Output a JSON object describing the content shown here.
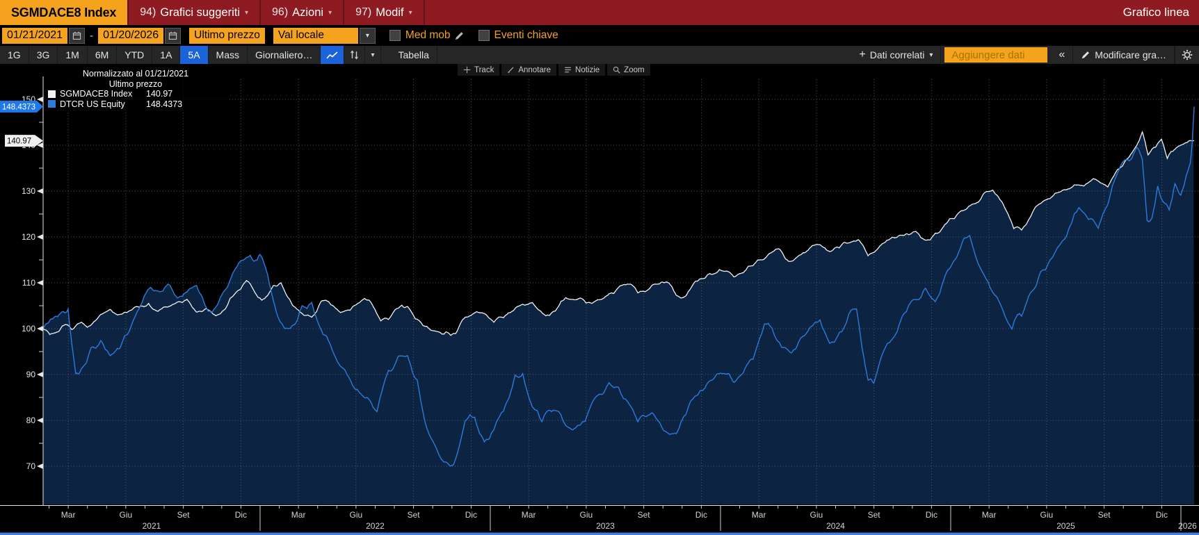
{
  "window": {
    "ticker": "SGMDACE8 Index",
    "menus": [
      {
        "num": "94)",
        "label": "Grafici suggeriti"
      },
      {
        "num": "96)",
        "label": "Azioni"
      },
      {
        "num": "97)",
        "label": "Modif"
      }
    ],
    "right_title": "Grafico linea"
  },
  "icons": {
    "caret": "▾",
    "collapse": "«",
    "plus": "+"
  },
  "controls": {
    "date_from": "01/21/2021",
    "date_sep": "-",
    "date_to": "01/20/2026",
    "price_field": "Ultimo prezzo",
    "currency_field": "Val locale",
    "med_mob_label": "Med mob",
    "eventi_label": "Eventi chiave"
  },
  "toolbar": {
    "ranges": [
      "1G",
      "3G",
      "1M",
      "6M",
      "YTD",
      "1A",
      "5A"
    ],
    "active_range": "5A",
    "mass_label": "Mass",
    "period_label": "Giornaliero…",
    "table_label": "Tabella",
    "dati_correlati": "Dati correlati",
    "aggiungere_dati": "Aggiungere dati",
    "modify_label": "Modificare gra…"
  },
  "chart_tools": [
    "Track",
    "Annotare",
    "Notizie",
    "Zoom"
  ],
  "legend": {
    "line1": "Normalizzato al 01/21/2021",
    "line2": "Ultimo prezzo",
    "series": [
      {
        "name": "SGMDACE8 Index",
        "value": "140.97",
        "color": "#f2f2f2"
      },
      {
        "name": "DTCR US Equity",
        "value": "148.4373",
        "color": "#2e7bdb"
      }
    ]
  },
  "chart_data": {
    "type": "line",
    "title": "Normalizzato al 01/21/2021",
    "subtitle": "Ultimo prezzo",
    "x_start": "01/21/2021",
    "x_end": "01/20/2026",
    "x_unit": "months_since_start",
    "ylim": [
      61.5,
      153
    ],
    "y_ticks": [
      70,
      80,
      90,
      100,
      110,
      120,
      130,
      140,
      150
    ],
    "x_month_labels": [
      "Mar",
      "Giu",
      "Set",
      "Dic"
    ],
    "years": [
      "2021",
      "2022",
      "2023",
      "2024",
      "2025",
      "2026"
    ],
    "grid": true,
    "legend_position": "top-left",
    "fill_color": "#0c2341",
    "series": [
      {
        "name": "SGMDACE8 Index",
        "color": "#f2f2f2",
        "last": 140.97,
        "points": [
          [
            0,
            100
          ],
          [
            0.7,
            99.2
          ],
          [
            1,
            100.6
          ],
          [
            1.5,
            99.8
          ],
          [
            2,
            101.4
          ],
          [
            2.3,
            100.3
          ],
          [
            3,
            103.1
          ],
          [
            3.5,
            104.2
          ],
          [
            4,
            103.1
          ],
          [
            4.5,
            103.9
          ],
          [
            5,
            104.7
          ],
          [
            5.5,
            105.5
          ],
          [
            6,
            103.8
          ],
          [
            6.5,
            104.7
          ],
          [
            7,
            105.8
          ],
          [
            7.5,
            106.4
          ],
          [
            8,
            103.6
          ],
          [
            8.5,
            104.4
          ],
          [
            9,
            102.8
          ],
          [
            9.5,
            104.3
          ],
          [
            10,
            107.6
          ],
          [
            10.6,
            110.5
          ],
          [
            11,
            108.2
          ],
          [
            11.4,
            106.2
          ],
          [
            12,
            109.4
          ],
          [
            12.4,
            110.0
          ],
          [
            13,
            105.1
          ],
          [
            13.6,
            102.9
          ],
          [
            14,
            102.5
          ],
          [
            14.5,
            106.0
          ],
          [
            15,
            105.2
          ],
          [
            15.5,
            103.5
          ],
          [
            16,
            104.0
          ],
          [
            16.5,
            105.7
          ],
          [
            17,
            106.2
          ],
          [
            17.6,
            101.7
          ],
          [
            18,
            102.0
          ],
          [
            18.7,
            105.1
          ],
          [
            19,
            104.8
          ],
          [
            19.8,
            100.7
          ],
          [
            20,
            100.5
          ],
          [
            20.8,
            98.8
          ],
          [
            21,
            99.3
          ],
          [
            21.5,
            98.9
          ],
          [
            22,
            102.5
          ],
          [
            22.6,
            103.7
          ],
          [
            23,
            103.3
          ],
          [
            23.5,
            101.4
          ],
          [
            24,
            102.4
          ],
          [
            24.5,
            103.9
          ],
          [
            25,
            105.3
          ],
          [
            25.5,
            105.7
          ],
          [
            26,
            103.5
          ],
          [
            26.4,
            102.9
          ],
          [
            27,
            106.0
          ],
          [
            27.5,
            106.4
          ],
          [
            28,
            106.7
          ],
          [
            28.6,
            105.5
          ],
          [
            29,
            106.3
          ],
          [
            29.5,
            107.6
          ],
          [
            30,
            109.0
          ],
          [
            30.5,
            109.7
          ],
          [
            31,
            107.8
          ],
          [
            31.5,
            108.4
          ],
          [
            32,
            109.7
          ],
          [
            32.5,
            110.2
          ],
          [
            33,
            107.3
          ],
          [
            33.5,
            107.1
          ],
          [
            34,
            110.3
          ],
          [
            34.5,
            111.0
          ],
          [
            35,
            112.0
          ],
          [
            35.5,
            112.5
          ],
          [
            36,
            111.3
          ],
          [
            36.5,
            112.2
          ],
          [
            37,
            113.7
          ],
          [
            37.5,
            115.0
          ],
          [
            38,
            116.7
          ],
          [
            38.4,
            117.3
          ],
          [
            39,
            114.7
          ],
          [
            39.5,
            116.1
          ],
          [
            40,
            117.7
          ],
          [
            40.5,
            118.3
          ],
          [
            41,
            116.8
          ],
          [
            41.5,
            117.6
          ],
          [
            42,
            118.7
          ],
          [
            42.5,
            119.4
          ],
          [
            43,
            115.9
          ],
          [
            43.5,
            117.4
          ],
          [
            44,
            119.3
          ],
          [
            44.5,
            119.9
          ],
          [
            45,
            120.7
          ],
          [
            45.5,
            121.2
          ],
          [
            46,
            119.3
          ],
          [
            46.5,
            120.8
          ],
          [
            47,
            122.7
          ],
          [
            47.5,
            124.0
          ],
          [
            48,
            125.8
          ],
          [
            48.5,
            127.2
          ],
          [
            49,
            129.3
          ],
          [
            49.5,
            130.2
          ],
          [
            50,
            127.5
          ],
          [
            50.6,
            121.8
          ],
          [
            51,
            121.5
          ],
          [
            51.5,
            124.6
          ],
          [
            52,
            127.3
          ],
          [
            52.5,
            128.4
          ],
          [
            53,
            129.8
          ],
          [
            53.5,
            130.5
          ],
          [
            54,
            131.3
          ],
          [
            54.5,
            131.9
          ],
          [
            55,
            132.2
          ],
          [
            55.5,
            130.9
          ],
          [
            56,
            134.7
          ],
          [
            56.5,
            137.0
          ],
          [
            57,
            139.9
          ],
          [
            57.3,
            142.9
          ],
          [
            57.6,
            137.9
          ],
          [
            58,
            139.6
          ],
          [
            58.3,
            141.3
          ],
          [
            58.6,
            137.1
          ],
          [
            59,
            139.1
          ],
          [
            59.5,
            140.4
          ],
          [
            60,
            140.97
          ]
        ]
      },
      {
        "name": "DTCR US Equity",
        "color": "#2e7bdb",
        "last": 148.4373,
        "points": [
          [
            0,
            100
          ],
          [
            0.5,
            102.1
          ],
          [
            1,
            103.7
          ],
          [
            1.3,
            104.3
          ],
          [
            1.7,
            90.2
          ],
          [
            2,
            91.3
          ],
          [
            2.5,
            95.9
          ],
          [
            3,
            97.4
          ],
          [
            3.5,
            94.1
          ],
          [
            4,
            95.7
          ],
          [
            4.5,
            99.5
          ],
          [
            5,
            104.3
          ],
          [
            5.6,
            109.0
          ],
          [
            6,
            108.2
          ],
          [
            6.5,
            109.7
          ],
          [
            7,
            106.7
          ],
          [
            7.5,
            108.0
          ],
          [
            8,
            109.4
          ],
          [
            8.6,
            103.8
          ],
          [
            9,
            104.7
          ],
          [
            9.5,
            108.5
          ],
          [
            10,
            112.9
          ],
          [
            10.8,
            116.0
          ],
          [
            11,
            114.7
          ],
          [
            11.3,
            116.2
          ],
          [
            11.7,
            111.9
          ],
          [
            12,
            106.1
          ],
          [
            12.6,
            100.0
          ],
          [
            13,
            100.7
          ],
          [
            13.5,
            105.0
          ],
          [
            14,
            105.7
          ],
          [
            14.6,
            98.7
          ],
          [
            15,
            96.2
          ],
          [
            15.5,
            91.8
          ],
          [
            16,
            88.9
          ],
          [
            16.5,
            86.0
          ],
          [
            17,
            84.5
          ],
          [
            17.4,
            81.9
          ],
          [
            18,
            90.9
          ],
          [
            18.5,
            93.9
          ],
          [
            19,
            94.1
          ],
          [
            19.5,
            88.8
          ],
          [
            20,
            78.3
          ],
          [
            20.5,
            73.9
          ],
          [
            21,
            70.9
          ],
          [
            21.4,
            70.4
          ],
          [
            22,
            79.9
          ],
          [
            22.5,
            80.7
          ],
          [
            23,
            75.3
          ],
          [
            23.5,
            78.0
          ],
          [
            24,
            82.0
          ],
          [
            24.6,
            89.9
          ],
          [
            25,
            90.2
          ],
          [
            25.5,
            82.9
          ],
          [
            26,
            79.7
          ],
          [
            26.5,
            81.9
          ],
          [
            27,
            81.1
          ],
          [
            27.5,
            78.2
          ],
          [
            28,
            79.0
          ],
          [
            28.5,
            82.6
          ],
          [
            29,
            85.7
          ],
          [
            29.5,
            88.2
          ],
          [
            30,
            87.2
          ],
          [
            30.5,
            83.9
          ],
          [
            31,
            79.7
          ],
          [
            31.5,
            81.0
          ],
          [
            32,
            80.2
          ],
          [
            32.5,
            77.4
          ],
          [
            33,
            77.1
          ],
          [
            33.5,
            81.2
          ],
          [
            34,
            85.3
          ],
          [
            34.5,
            87.0
          ],
          [
            35,
            89.3
          ],
          [
            35.5,
            90.2
          ],
          [
            36,
            88.3
          ],
          [
            36.5,
            90.4
          ],
          [
            37,
            93.3
          ],
          [
            37.6,
            101.0
          ],
          [
            38,
            100.1
          ],
          [
            38.5,
            95.9
          ],
          [
            39,
            94.7
          ],
          [
            39.5,
            98.0
          ],
          [
            40,
            100.4
          ],
          [
            40.5,
            101.9
          ],
          [
            41,
            96.8
          ],
          [
            41.5,
            99.1
          ],
          [
            42,
            103.2
          ],
          [
            42.4,
            104.3
          ],
          [
            43,
            88.8
          ],
          [
            43.3,
            88.1
          ],
          [
            44,
            96.7
          ],
          [
            44.5,
            99.2
          ],
          [
            45,
            103.7
          ],
          [
            45.5,
            106.3
          ],
          [
            46,
            108.8
          ],
          [
            46.5,
            105.9
          ],
          [
            47,
            111.3
          ],
          [
            47.5,
            114.9
          ],
          [
            48,
            119.7
          ],
          [
            48.3,
            120.3
          ],
          [
            49,
            112.1
          ],
          [
            49.5,
            107.9
          ],
          [
            50,
            104.3
          ],
          [
            50.5,
            99.9
          ],
          [
            50.8,
            103.1
          ],
          [
            51,
            102.7
          ],
          [
            51.5,
            108.0
          ],
          [
            52,
            112.4
          ],
          [
            52.5,
            115.0
          ],
          [
            53,
            118.3
          ],
          [
            53.5,
            122.1
          ],
          [
            54,
            126.4
          ],
          [
            54.5,
            123.8
          ],
          [
            55,
            121.9
          ],
          [
            55.5,
            127.1
          ],
          [
            56,
            133.9
          ],
          [
            56.5,
            136.8
          ],
          [
            57,
            139.5
          ],
          [
            57.3,
            136.9
          ],
          [
            57.55,
            123.6
          ],
          [
            57.8,
            124.1
          ],
          [
            58.1,
            131.1
          ],
          [
            58.4,
            127.6
          ],
          [
            58.7,
            125.9
          ],
          [
            59,
            131.6
          ],
          [
            59.3,
            129.1
          ],
          [
            59.6,
            133.6
          ],
          [
            59.8,
            136.1
          ],
          [
            59.9,
            140.6
          ],
          [
            60,
            148.4373
          ]
        ]
      }
    ],
    "badges": [
      {
        "value": "148.4373",
        "v": 148.4373,
        "bg": "#1f78e8",
        "fg": "#ffffff"
      },
      {
        "value": "140.97",
        "v": 140.97,
        "bg": "#f0f0f0",
        "fg": "#000000"
      }
    ]
  }
}
